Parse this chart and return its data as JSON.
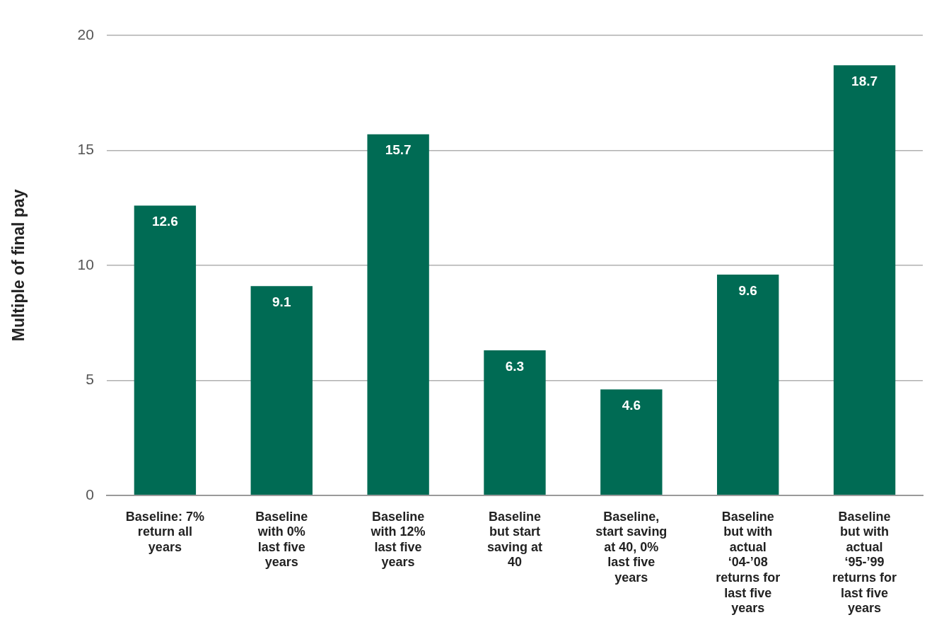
{
  "chart_data": {
    "type": "bar",
    "ylabel": "Multiple of final pay",
    "categories": [
      "Baseline: 7%\nreturn all\nyears",
      "Baseline\nwith 0%\nlast five\nyears",
      "Baseline\nwith 12%\nlast five\nyears",
      "Baseline\nbut start\nsaving at\n40",
      "Baseline,\nstart saving\nat 40, 0%\nlast five\nyears",
      "Baseline\nbut with\nactual\n‘04-’08\nreturns for\nlast five\nyears",
      "Baseline\nbut with\nactual\n‘95-’99\nreturns for\nlast five\nyears"
    ],
    "values": [
      12.6,
      9.1,
      15.7,
      6.3,
      4.6,
      9.6,
      18.7
    ],
    "color": "#006b54",
    "ylim": [
      0,
      20
    ],
    "yticks": [
      0,
      5,
      10,
      15,
      20
    ],
    "grid": "y",
    "data_labels": true
  }
}
